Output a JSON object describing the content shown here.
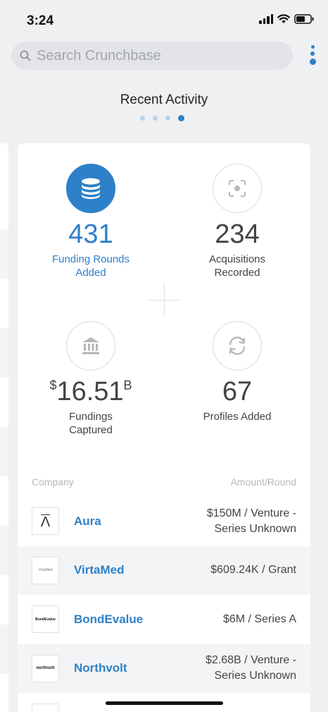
{
  "status_bar": {
    "time": "3:24"
  },
  "search": {
    "placeholder": "Search Crunchbase"
  },
  "section": {
    "title": "Recent Activity"
  },
  "pager": {
    "count": 4,
    "active_index": 3
  },
  "stats": [
    {
      "value": "431",
      "label": "Funding Rounds Added",
      "icon": "database-icon",
      "highlighted": true
    },
    {
      "value": "234",
      "label": "Acquisitions Recorded",
      "icon": "acquisition-icon",
      "highlighted": false
    },
    {
      "prefix": "$",
      "value": "16.51",
      "suffix": "B",
      "label": "Fundings Captured",
      "icon": "bank-icon",
      "highlighted": false
    },
    {
      "value": "67",
      "label": "Profiles Added",
      "icon": "refresh-icon",
      "highlighted": false
    }
  ],
  "table": {
    "headers": {
      "company": "Company",
      "amount": "Amount/Round"
    },
    "rows": [
      {
        "company": "Aura",
        "amount": "$150M / Venture - Series Unknown",
        "logo_text": "Λ"
      },
      {
        "company": "VirtaMed",
        "amount": "$609.24K / Grant",
        "logo_text": "VirtaMed"
      },
      {
        "company": "BondEvalue",
        "amount": "$6M / Series A",
        "logo_text": "BondEvalue"
      },
      {
        "company": "Northvolt",
        "amount": "$2.68B / Venture - Series Unknown",
        "logo_text": "northvolt"
      }
    ]
  },
  "colors": {
    "accent": "#2e80c8",
    "background": "#eef0f2",
    "card": "#ffffff"
  }
}
